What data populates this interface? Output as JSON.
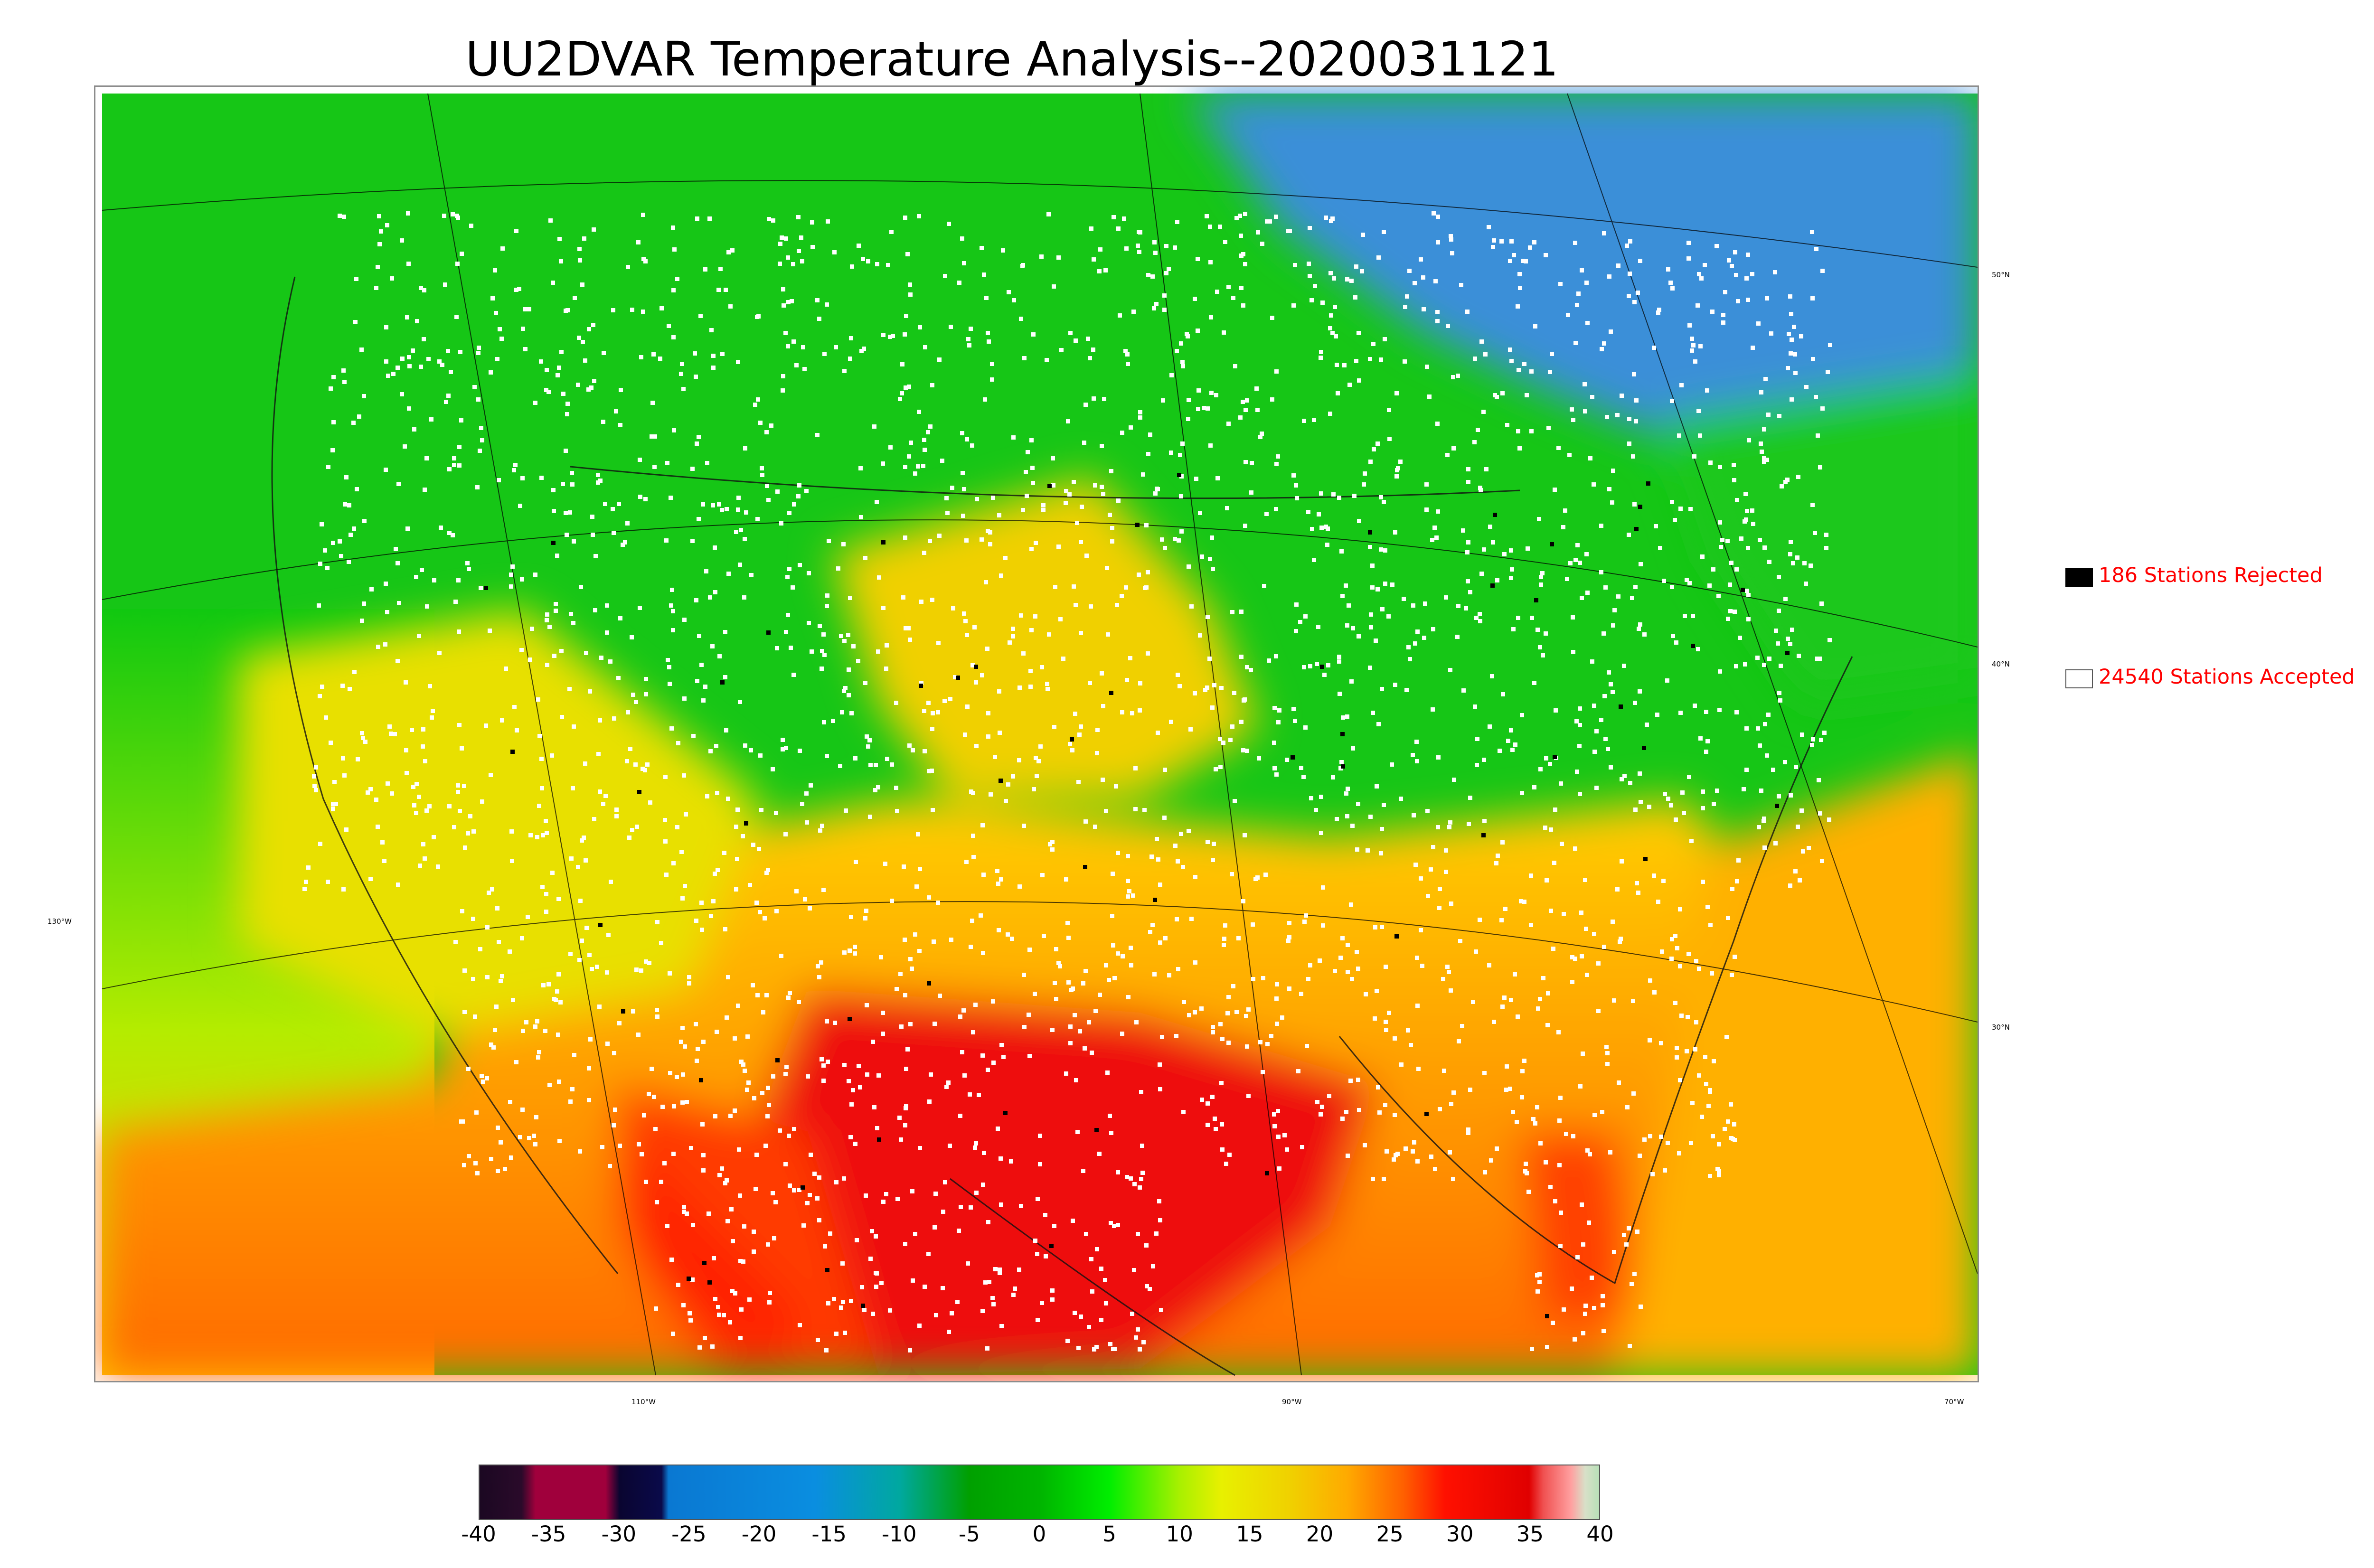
{
  "title": "UU2DVAR Temperature Analysis--2020031121",
  "legend": {
    "rejected": {
      "label": "186 Stations Rejected",
      "swatch_color": "#000000"
    },
    "accepted": {
      "label": "24540 Stations Accepted",
      "swatch_color": "#ffffff"
    },
    "text_color": "#ff0000"
  },
  "latitude_labels": [
    "50°N",
    "40°N",
    "30°N"
  ],
  "longitude_labels": [
    "130°W",
    "110°W",
    "90°W",
    "70°W"
  ],
  "colorbar": {
    "ticks": [
      "-40",
      "-35",
      "-30",
      "-25",
      "-20",
      "-15",
      "-10",
      "-5",
      "0",
      "5",
      "10",
      "15",
      "20",
      "25",
      "30",
      "35",
      "40"
    ],
    "min": -40,
    "max": 40,
    "stops": [
      {
        "value": -40,
        "color": "#1b0822"
      },
      {
        "value": -37,
        "color": "#2a0a2a"
      },
      {
        "value": -36,
        "color": "#a0003c"
      },
      {
        "value": -31,
        "color": "#a0003c"
      },
      {
        "value": -30,
        "color": "#0a0530"
      },
      {
        "value": -27,
        "color": "#0a0a4a"
      },
      {
        "value": -26.5,
        "color": "#0a78d2"
      },
      {
        "value": -16,
        "color": "#0a8ee0"
      },
      {
        "value": -10,
        "color": "#00a8a0"
      },
      {
        "value": -5,
        "color": "#00a000"
      },
      {
        "value": 0,
        "color": "#00b400"
      },
      {
        "value": 5,
        "color": "#00ee00"
      },
      {
        "value": 10,
        "color": "#a8f000"
      },
      {
        "value": 13,
        "color": "#e8f000"
      },
      {
        "value": 18,
        "color": "#f0d000"
      },
      {
        "value": 22,
        "color": "#ffaa00"
      },
      {
        "value": 26,
        "color": "#ff6000"
      },
      {
        "value": 29,
        "color": "#ff1000"
      },
      {
        "value": 35,
        "color": "#e00000"
      },
      {
        "value": 36,
        "color": "#f05050"
      },
      {
        "value": 38,
        "color": "#ffa0a0"
      },
      {
        "value": 39,
        "color": "#d8e0c8"
      },
      {
        "value": 40,
        "color": "#b8e0b8"
      }
    ]
  },
  "region_colors": {
    "canada_north": "#3a8fd8",
    "cold_green": "#13c813",
    "mid_green": "#18d818",
    "yellow_green": "#b8f000",
    "yellow": "#f0d000",
    "orange": "#ff9900",
    "warm": "#ff5a00",
    "hot_red": "#ee0a0a",
    "pacific_south": "#ffba00",
    "atlantic_south": "#ffb000",
    "station_accepted": "#ffffff",
    "station_rejected": "#000000"
  }
}
